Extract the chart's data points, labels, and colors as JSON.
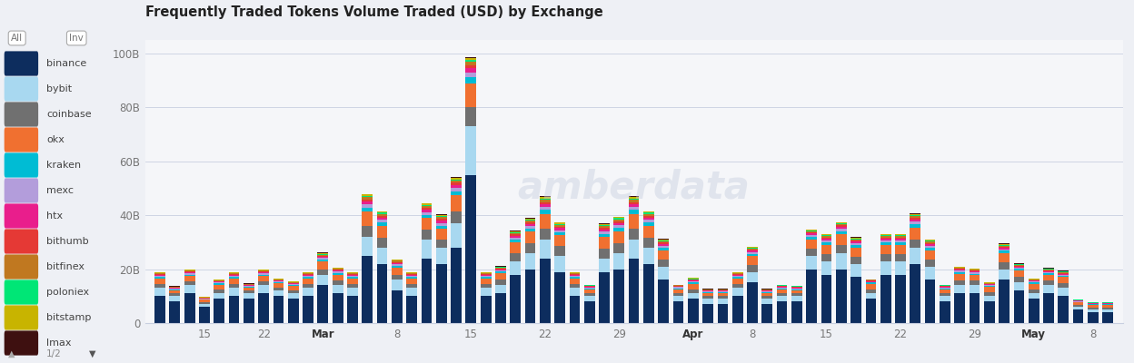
{
  "title": "Frequently Traded Tokens Volume Traded (USD) by Exchange",
  "exchanges": [
    "binance",
    "bybit",
    "coinbase",
    "okx",
    "kraken",
    "mexc",
    "htx",
    "bithumb",
    "bitfinex",
    "poloniex",
    "bitstamp",
    "lmax"
  ],
  "colors": [
    "#0d2d5e",
    "#a8d8f0",
    "#707070",
    "#f07030",
    "#00bcd4",
    "#b39ddb",
    "#e91e8c",
    "#e53935",
    "#c07820",
    "#00e676",
    "#c8b400",
    "#3e1010"
  ],
  "background_color": "#eef0f5",
  "plot_background": "#f5f6f9",
  "bar_data": {
    "binance": [
      10,
      8,
      11,
      6,
      9,
      10,
      9,
      11,
      10,
      9,
      10,
      14,
      11,
      10,
      25,
      22,
      12,
      10,
      24,
      22,
      28,
      55,
      10,
      11,
      18,
      20,
      24,
      19,
      10,
      8,
      19,
      20,
      24,
      22,
      16,
      8,
      9,
      7,
      7,
      10,
      15,
      7,
      8,
      8,
      20,
      18,
      20,
      17,
      9,
      18,
      18,
      22,
      16,
      8,
      11,
      11,
      8,
      16,
      12,
      9,
      11,
      10,
      5,
      4,
      4
    ],
    "bybit": [
      3,
      2,
      3,
      1,
      2,
      3,
      2,
      3,
      2,
      2,
      3,
      4,
      3,
      3,
      7,
      6,
      4,
      3,
      7,
      6,
      9,
      18,
      3,
      3,
      5,
      6,
      7,
      6,
      3,
      2,
      5,
      6,
      7,
      6,
      5,
      2,
      2,
      2,
      2,
      3,
      4,
      2,
      2,
      2,
      5,
      5,
      6,
      5,
      2,
      5,
      5,
      6,
      5,
      2,
      3,
      3,
      2,
      4,
      3,
      2,
      3,
      3,
      1,
      1,
      1
    ],
    "coinbase": [
      1.5,
      1,
      1.5,
      0.8,
      1.5,
      1.5,
      1,
      1.5,
      1.2,
      1.2,
      1.5,
      2,
      1.8,
      1.5,
      4,
      3.5,
      2,
      1.5,
      3.5,
      3,
      4.5,
      7,
      1.5,
      2,
      3,
      3.5,
      4,
      3.5,
      1.5,
      1,
      3.5,
      3.5,
      4,
      3.5,
      2.5,
      1,
      1.5,
      1,
      1,
      1.5,
      2.5,
      1,
      1,
      1,
      2.5,
      2.5,
      3,
      2.5,
      1.5,
      2.5,
      2.5,
      3,
      2.5,
      1,
      1.8,
      1.8,
      1.5,
      2.5,
      2,
      1.5,
      1.8,
      1.8,
      0.8,
      0.8,
      0.8
    ],
    "okx": [
      2,
      1.2,
      2,
      0.8,
      1.8,
      2,
      1.2,
      2,
      1.5,
      1.5,
      2,
      2.8,
      2.2,
      2,
      5.5,
      4.5,
      2.5,
      2,
      4.5,
      4,
      6,
      9,
      2,
      2.5,
      4,
      4.5,
      5.5,
      4,
      2,
      1.5,
      4.5,
      4.5,
      5.5,
      4.5,
      3.5,
      1.5,
      2,
      1.2,
      1.2,
      2,
      3.5,
      1.2,
      1.5,
      1.2,
      3.5,
      3.5,
      4,
      3.5,
      2,
      3.5,
      3.5,
      4.5,
      3.5,
      1.5,
      2.5,
      2,
      1.8,
      3.5,
      2.5,
      2,
      2.2,
      2.2,
      0.9,
      0.9,
      0.9
    ],
    "kraken": [
      0.5,
      0.3,
      0.5,
      0.2,
      0.4,
      0.5,
      0.3,
      0.5,
      0.4,
      0.4,
      0.5,
      0.7,
      0.6,
      0.5,
      1.4,
      1.2,
      0.7,
      0.5,
      1.2,
      1.1,
      1.4,
      2.2,
      0.5,
      0.6,
      0.9,
      1.1,
      1.4,
      1.0,
      0.5,
      0.4,
      1.1,
      1.2,
      1.4,
      1.2,
      0.9,
      0.4,
      0.5,
      0.3,
      0.3,
      0.5,
      0.7,
      0.3,
      0.4,
      0.4,
      0.9,
      0.9,
      1.1,
      0.9,
      0.5,
      0.9,
      0.9,
      1.2,
      0.9,
      0.4,
      0.6,
      0.5,
      0.4,
      0.8,
      0.6,
      0.5,
      0.5,
      0.5,
      0.2,
      0.2,
      0.2
    ],
    "mexc": [
      0.4,
      0.3,
      0.4,
      0.2,
      0.4,
      0.4,
      0.3,
      0.4,
      0.3,
      0.3,
      0.4,
      0.6,
      0.5,
      0.4,
      1.2,
      1.0,
      0.6,
      0.4,
      1.0,
      1.0,
      1.2,
      1.8,
      0.4,
      0.5,
      0.8,
      0.9,
      1.2,
      0.9,
      0.4,
      0.3,
      0.9,
      1.0,
      1.2,
      1.0,
      0.8,
      0.4,
      0.4,
      0.3,
      0.3,
      0.4,
      0.6,
      0.3,
      0.3,
      0.3,
      0.7,
      0.8,
      0.9,
      0.8,
      0.3,
      0.8,
      0.8,
      1.0,
      0.7,
      0.3,
      0.5,
      0.5,
      0.4,
      0.6,
      0.5,
      0.4,
      0.4,
      0.4,
      0.2,
      0.2,
      0.2
    ],
    "htx": [
      0.4,
      0.2,
      0.4,
      0.2,
      0.3,
      0.4,
      0.2,
      0.4,
      0.3,
      0.3,
      0.4,
      0.5,
      0.4,
      0.4,
      1.0,
      0.9,
      0.5,
      0.4,
      0.9,
      0.9,
      1.1,
      1.5,
      0.4,
      0.4,
      0.7,
      0.8,
      1.0,
      0.8,
      0.4,
      0.3,
      0.8,
      0.9,
      1.0,
      0.9,
      0.7,
      0.3,
      0.3,
      0.2,
      0.2,
      0.4,
      0.5,
      0.2,
      0.3,
      0.3,
      0.6,
      0.6,
      0.7,
      0.6,
      0.3,
      0.6,
      0.6,
      0.8,
      0.6,
      0.3,
      0.4,
      0.4,
      0.3,
      0.5,
      0.4,
      0.3,
      0.4,
      0.4,
      0.2,
      0.2,
      0.2
    ],
    "bithumb": [
      0.3,
      0.2,
      0.3,
      0.1,
      0.2,
      0.3,
      0.2,
      0.3,
      0.2,
      0.2,
      0.3,
      0.4,
      0.3,
      0.3,
      0.8,
      0.7,
      0.4,
      0.3,
      0.7,
      0.7,
      0.8,
      1.2,
      0.3,
      0.3,
      0.5,
      0.6,
      0.8,
      0.6,
      0.3,
      0.2,
      0.6,
      0.7,
      0.8,
      0.7,
      0.5,
      0.2,
      0.3,
      0.2,
      0.2,
      0.3,
      0.4,
      0.2,
      0.2,
      0.2,
      0.4,
      0.5,
      0.5,
      0.4,
      0.2,
      0.5,
      0.5,
      0.6,
      0.5,
      0.2,
      0.3,
      0.3,
      0.2,
      0.4,
      0.3,
      0.2,
      0.3,
      0.3,
      0.1,
      0.1,
      0.1
    ],
    "bitfinex": [
      0.3,
      0.2,
      0.3,
      0.1,
      0.2,
      0.3,
      0.2,
      0.3,
      0.2,
      0.2,
      0.3,
      0.4,
      0.3,
      0.3,
      0.8,
      0.7,
      0.4,
      0.3,
      0.7,
      0.7,
      0.8,
      1.2,
      0.3,
      0.3,
      0.5,
      0.6,
      0.8,
      0.6,
      0.3,
      0.2,
      0.6,
      0.7,
      0.8,
      0.7,
      0.5,
      0.2,
      0.3,
      0.2,
      0.2,
      0.3,
      0.4,
      0.2,
      0.2,
      0.2,
      0.4,
      0.5,
      0.5,
      0.4,
      0.2,
      0.5,
      0.5,
      0.6,
      0.5,
      0.2,
      0.3,
      0.3,
      0.2,
      0.4,
      0.3,
      0.2,
      0.3,
      0.3,
      0.1,
      0.1,
      0.1
    ],
    "poloniex": [
      0.2,
      0.1,
      0.2,
      0.1,
      0.1,
      0.2,
      0.1,
      0.2,
      0.15,
      0.15,
      0.2,
      0.3,
      0.2,
      0.2,
      0.5,
      0.4,
      0.2,
      0.2,
      0.4,
      0.4,
      0.5,
      0.7,
      0.2,
      0.2,
      0.3,
      0.4,
      0.5,
      0.4,
      0.2,
      0.1,
      0.4,
      0.4,
      0.5,
      0.4,
      0.3,
      0.1,
      0.2,
      0.1,
      0.1,
      0.2,
      0.3,
      0.1,
      0.1,
      0.1,
      0.3,
      0.3,
      0.3,
      0.3,
      0.1,
      0.3,
      0.3,
      0.4,
      0.3,
      0.1,
      0.2,
      0.2,
      0.15,
      0.3,
      0.2,
      0.15,
      0.2,
      0.2,
      0.1,
      0.1,
      0.1
    ],
    "bitstamp": [
      0.2,
      0.1,
      0.2,
      0.1,
      0.1,
      0.2,
      0.1,
      0.2,
      0.15,
      0.15,
      0.2,
      0.3,
      0.2,
      0.2,
      0.5,
      0.4,
      0.2,
      0.2,
      0.4,
      0.4,
      0.5,
      0.7,
      0.2,
      0.2,
      0.3,
      0.4,
      0.5,
      0.4,
      0.2,
      0.1,
      0.4,
      0.4,
      0.5,
      0.4,
      0.3,
      0.1,
      0.2,
      0.1,
      0.1,
      0.2,
      0.3,
      0.1,
      0.1,
      0.1,
      0.3,
      0.3,
      0.3,
      0.3,
      0.1,
      0.3,
      0.3,
      0.4,
      0.3,
      0.1,
      0.2,
      0.2,
      0.15,
      0.3,
      0.2,
      0.15,
      0.2,
      0.2,
      0.1,
      0.1,
      0.1
    ],
    "lmax": [
      0.1,
      0.05,
      0.1,
      0.05,
      0.08,
      0.1,
      0.05,
      0.1,
      0.08,
      0.08,
      0.1,
      0.15,
      0.12,
      0.1,
      0.25,
      0.22,
      0.12,
      0.1,
      0.22,
      0.2,
      0.25,
      0.4,
      0.1,
      0.12,
      0.18,
      0.2,
      0.25,
      0.2,
      0.1,
      0.08,
      0.2,
      0.22,
      0.25,
      0.22,
      0.16,
      0.08,
      0.1,
      0.07,
      0.07,
      0.1,
      0.15,
      0.07,
      0.08,
      0.08,
      0.16,
      0.18,
      0.2,
      0.16,
      0.1,
      0.16,
      0.16,
      0.2,
      0.16,
      0.08,
      0.12,
      0.1,
      0.08,
      0.15,
      0.12,
      0.1,
      0.12,
      0.12,
      0.05,
      0.05,
      0.05
    ]
  },
  "x_tick_map": {
    "3": "15",
    "7": "22",
    "11": "Mar",
    "16": "8",
    "21": "15",
    "26": "22",
    "31": "29",
    "36": "Apr",
    "40": "8",
    "45": "15",
    "50": "22",
    "55": "29",
    "59": "May",
    "63": "8"
  }
}
